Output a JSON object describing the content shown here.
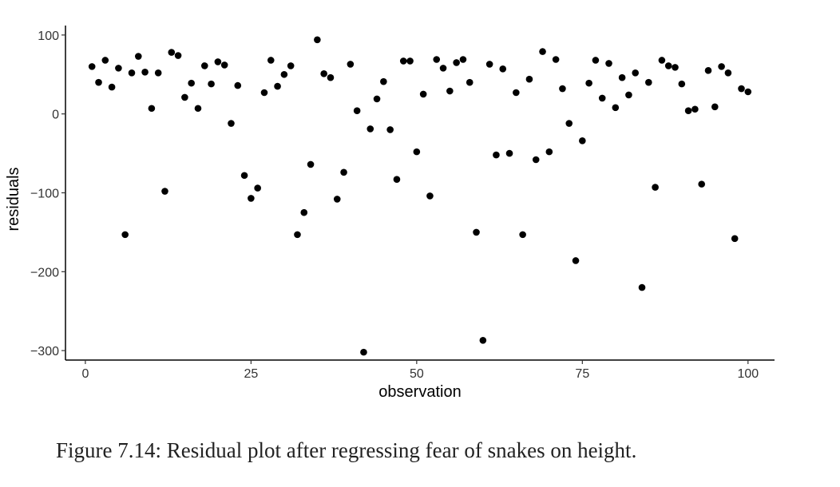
{
  "chart_data": {
    "type": "scatter",
    "title": "",
    "xlabel": "observation",
    "ylabel": "residuals",
    "xlim": [
      -3,
      104
    ],
    "ylim": [
      -312,
      112
    ],
    "xticks": [
      0,
      25,
      50,
      75,
      100
    ],
    "xtick_labels": [
      "0",
      "25",
      "50",
      "75",
      "100"
    ],
    "yticks": [
      100,
      0,
      -100,
      -200,
      -300
    ],
    "ytick_labels": [
      "100",
      "0",
      "−100",
      "−200",
      "−300"
    ],
    "grid": false,
    "legend": "none",
    "point_color": "#000000",
    "x": [
      1,
      2,
      3,
      4,
      5,
      6,
      7,
      8,
      9,
      10,
      11,
      12,
      13,
      14,
      15,
      16,
      17,
      18,
      19,
      20,
      21,
      22,
      23,
      24,
      25,
      26,
      27,
      28,
      29,
      30,
      31,
      32,
      33,
      34,
      35,
      36,
      37,
      38,
      39,
      40,
      41,
      42,
      43,
      44,
      45,
      46,
      47,
      48,
      49,
      50,
      51,
      52,
      53,
      54,
      55,
      56,
      57,
      58,
      59,
      60,
      61,
      62,
      63,
      64,
      65,
      66,
      67,
      68,
      69,
      70,
      71,
      72,
      73,
      74,
      75,
      76,
      77,
      78,
      79,
      80,
      81,
      82,
      83,
      84,
      85,
      86,
      87,
      88,
      89,
      90,
      91,
      92,
      93,
      94,
      95,
      96,
      97,
      98,
      99,
      100
    ],
    "y": [
      60,
      40,
      68,
      34,
      58,
      -153,
      52,
      73,
      53,
      7,
      52,
      -98,
      78,
      74,
      21,
      39,
      7,
      61,
      38,
      66,
      62,
      -12,
      36,
      -78,
      -107,
      -94,
      27,
      68,
      35,
      50,
      61,
      -153,
      -125,
      -64,
      94,
      51,
      46,
      -108,
      -74,
      63,
      4,
      -302,
      -19,
      19,
      41,
      -20,
      -83,
      67,
      67,
      -48,
      25,
      -104,
      69,
      58,
      29,
      65,
      69,
      40,
      -150,
      -287,
      63,
      -52,
      57,
      -50,
      27,
      -153,
      44,
      -58,
      79,
      -48,
      69,
      32,
      -12,
      -186,
      -34,
      39,
      68,
      20,
      64,
      8,
      46,
      24,
      52,
      -220,
      40,
      -93,
      68,
      61,
      59,
      38,
      4,
      6,
      -89,
      55,
      9,
      60,
      52,
      -158,
      32,
      28
    ]
  },
  "caption": "Figure 7.14: Residual plot after regressing fear of snakes on height."
}
